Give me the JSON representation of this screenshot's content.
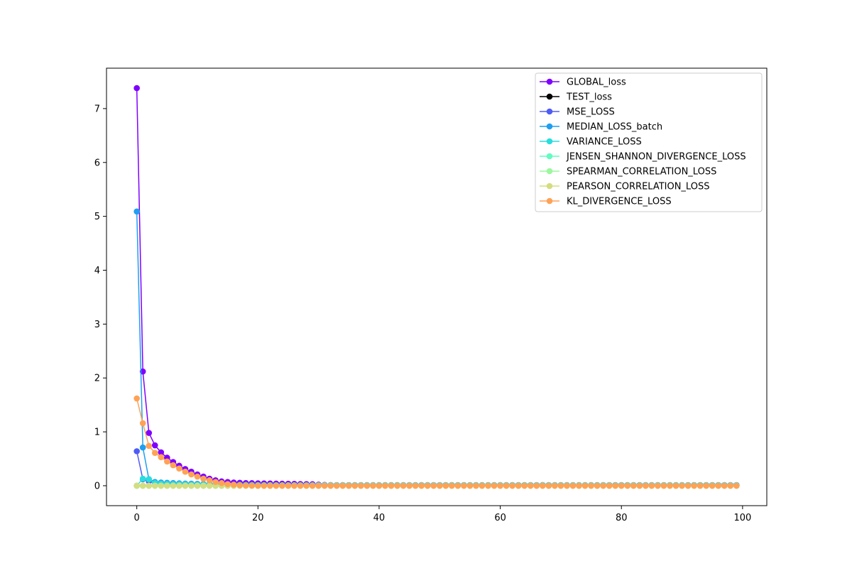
{
  "chart_data": {
    "type": "line",
    "title": "",
    "xlabel": "",
    "ylabel": "",
    "x": {
      "start": 0,
      "end": 99,
      "step": 1
    },
    "xlim": [
      -5,
      104
    ],
    "ylim": [
      -0.37,
      7.75
    ],
    "xticks": [
      0,
      20,
      40,
      60,
      80,
      100
    ],
    "yticks": [
      0,
      1,
      2,
      3,
      4,
      5,
      6,
      7
    ],
    "grid": false,
    "legend_position": "top-right",
    "markers": "circle",
    "series": [
      {
        "name": "GLOBAL_loss",
        "color": "#7f00ff",
        "values": [
          7.38,
          2.12,
          0.98,
          0.75,
          0.62,
          0.52,
          0.44,
          0.37,
          0.31,
          0.26,
          0.21,
          0.17,
          0.13,
          0.1,
          0.08,
          0.07,
          0.06,
          0.055,
          0.05,
          0.048,
          0.045,
          0.043,
          0.041,
          0.04,
          0.038,
          0.036,
          0.034,
          0.032,
          0.03,
          0.028,
          0.02,
          0.015,
          0.012,
          0.01,
          0.01,
          0.01,
          0.01,
          0.01,
          0.01,
          0.01,
          0.01,
          0.01,
          0.01,
          0.01,
          0.01,
          0.01,
          0.01,
          0.01,
          0.01,
          0.01,
          0.01,
          0.01,
          0.01,
          0.01,
          0.01,
          0.01,
          0.01,
          0.01,
          0.01,
          0.01,
          0.01,
          0.01,
          0.01,
          0.01,
          0.01,
          0.01,
          0.01,
          0.01,
          0.01,
          0.01,
          0.01,
          0.01,
          0.01,
          0.01,
          0.01,
          0.01,
          0.01,
          0.01,
          0.01,
          0.01,
          0.01,
          0.01,
          0.01,
          0.01,
          0.01,
          0.01,
          0.01,
          0.01,
          0.01,
          0.01,
          0.01,
          0.01,
          0.01,
          0.01,
          0.01,
          0.01,
          0.01,
          0.01,
          0.01,
          0.01
        ]
      },
      {
        "name": "TEST_loss",
        "color": "#000000",
        "values": []
      },
      {
        "name": "MSE_LOSS",
        "color": "#4f5bf5",
        "values": [
          0.64,
          0.12,
          0.08,
          0.06,
          0.05,
          0.045,
          0.04,
          0.035,
          0.03,
          0.028,
          0.026,
          0.024,
          0.022,
          0.02,
          0.019,
          0.018,
          0.017,
          0.016,
          0.015,
          0.014,
          0.013,
          0.012,
          0.011,
          0.01,
          0.01,
          0.01,
          0.01,
          0.01,
          0.01,
          0.01,
          0.01,
          0.01,
          0.01,
          0.01,
          0.01,
          0.01,
          0.01,
          0.01,
          0.01,
          0.01,
          0.01,
          0.01,
          0.01,
          0.01,
          0.01,
          0.01,
          0.01,
          0.01,
          0.01,
          0.01,
          0.01,
          0.01,
          0.01,
          0.01,
          0.01,
          0.01,
          0.01,
          0.01,
          0.01,
          0.01,
          0.01,
          0.01,
          0.01,
          0.01,
          0.01,
          0.01,
          0.01,
          0.01,
          0.01,
          0.01,
          0.01,
          0.01,
          0.01,
          0.01,
          0.01,
          0.01,
          0.01,
          0.01,
          0.01,
          0.01,
          0.01,
          0.01,
          0.01,
          0.01,
          0.01,
          0.01,
          0.01,
          0.01,
          0.01,
          0.01,
          0.01,
          0.01,
          0.01,
          0.01,
          0.01,
          0.01,
          0.01,
          0.01,
          0.01,
          0.01
        ]
      },
      {
        "name": "MEDIAN_LOSS_batch",
        "color": "#1e9ff0",
        "values": [
          5.09,
          0.71,
          0.12,
          0.07,
          0.06,
          0.055,
          0.05,
          0.045,
          0.04,
          0.038,
          0.035,
          0.032,
          0.03,
          0.028,
          0.026,
          0.024,
          0.022,
          0.02,
          0.018,
          0.016,
          0.014,
          0.012,
          0.01,
          0.01,
          0.01,
          0.01,
          0.01,
          0.01,
          0.01,
          0.01,
          0.01,
          0.01,
          0.01,
          0.01,
          0.01,
          0.01,
          0.01,
          0.01,
          0.01,
          0.01,
          0.01,
          0.01,
          0.01,
          0.01,
          0.01,
          0.01,
          0.01,
          0.01,
          0.01,
          0.01,
          0.01,
          0.01,
          0.01,
          0.01,
          0.01,
          0.01,
          0.01,
          0.01,
          0.01,
          0.01,
          0.01,
          0.01,
          0.01,
          0.01,
          0.01,
          0.01,
          0.01,
          0.01,
          0.01,
          0.01,
          0.01,
          0.01,
          0.01,
          0.01,
          0.01,
          0.01,
          0.01,
          0.01,
          0.01,
          0.01,
          0.01,
          0.01,
          0.01,
          0.01,
          0.01,
          0.01,
          0.01,
          0.01,
          0.01,
          0.01,
          0.01,
          0.01,
          0.01,
          0.01,
          0.01,
          0.01,
          0.01,
          0.01,
          0.01,
          0.01
        ]
      },
      {
        "name": "VARIANCE_LOSS",
        "color": "#2adddd",
        "values": [
          0.0,
          0.13,
          0.12,
          0.05,
          0.04,
          0.035,
          0.03,
          0.028,
          0.025,
          0.022,
          0.02,
          0.018,
          0.016,
          0.014,
          0.012,
          0.01,
          0.01,
          0.01,
          0.01,
          0.01,
          0.01,
          0.01,
          0.01,
          0.01,
          0.01,
          0.01,
          0.01,
          0.01,
          0.01,
          0.01,
          0.01,
          0.01,
          0.01,
          0.01,
          0.01,
          0.01,
          0.01,
          0.01,
          0.01,
          0.01,
          0.01,
          0.01,
          0.01,
          0.01,
          0.01,
          0.01,
          0.01,
          0.01,
          0.01,
          0.01,
          0.01,
          0.01,
          0.01,
          0.01,
          0.01,
          0.01,
          0.01,
          0.01,
          0.01,
          0.01,
          0.01,
          0.01,
          0.01,
          0.01,
          0.01,
          0.01,
          0.01,
          0.01,
          0.01,
          0.01,
          0.01,
          0.01,
          0.01,
          0.01,
          0.01,
          0.01,
          0.01,
          0.01,
          0.01,
          0.01,
          0.01,
          0.01,
          0.01,
          0.01,
          0.01,
          0.01,
          0.01,
          0.01,
          0.01,
          0.01,
          0.01,
          0.01,
          0.01,
          0.01,
          0.01,
          0.01,
          0.01,
          0.01,
          0.01,
          0.01
        ]
      },
      {
        "name": "JENSEN_SHANNON_DIVERGENCE_LOSS",
        "color": "#62fbc2",
        "values": [
          0.0,
          0.0,
          0.0,
          0.0,
          0.0,
          0.0,
          0.0,
          0.0,
          0.0,
          0.0,
          0.0,
          0.0,
          0.0,
          0.0,
          0.0,
          0.0,
          0.0,
          0.0,
          0.0,
          0.0,
          0.0,
          0.0,
          0.0,
          0.0,
          0.0,
          0.0,
          0.0,
          0.0,
          0.0,
          0.0,
          0.0,
          0.0,
          0.0,
          0.0,
          0.0,
          0.0,
          0.0,
          0.0,
          0.0,
          0.0,
          0.0,
          0.0,
          0.0,
          0.0,
          0.0,
          0.0,
          0.0,
          0.0,
          0.0,
          0.0,
          0.0,
          0.0,
          0.0,
          0.0,
          0.0,
          0.0,
          0.0,
          0.0,
          0.0,
          0.0,
          0.0,
          0.0,
          0.0,
          0.0,
          0.0,
          0.0,
          0.0,
          0.0,
          0.0,
          0.0,
          0.0,
          0.0,
          0.0,
          0.0,
          0.0,
          0.0,
          0.0,
          0.0,
          0.0,
          0.0,
          0.0,
          0.0,
          0.0,
          0.0,
          0.0,
          0.0,
          0.0,
          0.0,
          0.0,
          0.0,
          0.0,
          0.0,
          0.0,
          0.0,
          0.0,
          0.0,
          0.0,
          0.0,
          0.0,
          0.0
        ]
      },
      {
        "name": "SPEARMAN_CORRELATION_LOSS",
        "color": "#9cf7a0",
        "values": [
          0.0,
          0.0,
          0.0,
          0.0,
          0.0,
          0.0,
          0.0,
          0.0,
          0.0,
          0.0,
          0.0,
          0.0,
          0.0,
          0.0,
          0.0,
          0.0,
          0.0,
          0.0,
          0.0,
          0.0,
          0.0,
          0.0,
          0.0,
          0.0,
          0.0,
          0.0,
          0.0,
          0.0,
          0.0,
          0.0,
          0.0,
          0.0,
          0.0,
          0.0,
          0.0,
          0.0,
          0.0,
          0.0,
          0.0,
          0.0,
          0.0,
          0.0,
          0.0,
          0.0,
          0.0,
          0.0,
          0.0,
          0.0,
          0.0,
          0.0,
          0.0,
          0.0,
          0.0,
          0.0,
          0.0,
          0.0,
          0.0,
          0.0,
          0.0,
          0.0,
          0.0,
          0.0,
          0.0,
          0.0,
          0.0,
          0.0,
          0.0,
          0.0,
          0.0,
          0.0,
          0.0,
          0.0,
          0.0,
          0.0,
          0.0,
          0.0,
          0.0,
          0.0,
          0.0,
          0.0,
          0.0,
          0.0,
          0.0,
          0.0,
          0.0,
          0.0,
          0.0,
          0.0,
          0.0,
          0.0,
          0.0,
          0.0,
          0.0,
          0.0,
          0.0,
          0.0,
          0.0,
          0.0,
          0.0,
          0.0
        ]
      },
      {
        "name": "PEARSON_CORRELATION_LOSS",
        "color": "#d4dd80",
        "values": [
          0.0,
          0.0,
          0.0,
          0.0,
          0.0,
          0.0,
          0.0,
          0.0,
          0.0,
          0.0,
          0.0,
          0.0,
          0.0,
          0.0,
          0.0,
          0.0,
          0.0,
          0.0,
          0.0,
          0.0,
          0.0,
          0.0,
          0.0,
          0.0,
          0.0,
          0.0,
          0.0,
          0.0,
          0.0,
          0.0,
          0.0,
          0.0,
          0.0,
          0.0,
          0.0,
          0.0,
          0.0,
          0.0,
          0.0,
          0.0,
          0.0,
          0.0,
          0.0,
          0.0,
          0.0,
          0.0,
          0.0,
          0.0,
          0.0,
          0.0,
          0.0,
          0.0,
          0.0,
          0.0,
          0.0,
          0.0,
          0.0,
          0.0,
          0.0,
          0.0,
          0.0,
          0.0,
          0.0,
          0.0,
          0.0,
          0.0,
          0.0,
          0.0,
          0.0,
          0.0,
          0.0,
          0.0,
          0.0,
          0.0,
          0.0,
          0.0,
          0.0,
          0.0,
          0.0,
          0.0,
          0.0,
          0.0,
          0.0,
          0.0,
          0.0,
          0.0,
          0.0,
          0.0,
          0.0,
          0.0,
          0.0,
          0.0,
          0.0,
          0.0,
          0.0,
          0.0,
          0.0,
          0.0,
          0.0,
          0.0
        ]
      },
      {
        "name": "KL_DIVERGENCE_LOSS",
        "color": "#ffa256",
        "values": [
          1.62,
          1.16,
          0.74,
          0.61,
          0.53,
          0.45,
          0.38,
          0.32,
          0.26,
          0.21,
          0.17,
          0.13,
          0.1,
          0.07,
          0.05,
          0.03,
          0.02,
          0.01,
          0.005,
          0.003,
          0.0,
          0.0,
          0.0,
          0.0,
          0.0,
          0.0,
          0.0,
          0.0,
          0.0,
          0.0,
          0.0,
          0.0,
          0.0,
          0.0,
          0.0,
          0.0,
          0.0,
          0.0,
          0.0,
          0.0,
          0.0,
          0.0,
          0.0,
          0.0,
          0.0,
          0.0,
          0.0,
          0.0,
          0.0,
          0.0,
          0.0,
          0.0,
          0.0,
          0.0,
          0.0,
          0.0,
          0.0,
          0.0,
          0.0,
          0.0,
          0.0,
          0.0,
          0.0,
          0.0,
          0.0,
          0.0,
          0.0,
          0.0,
          0.0,
          0.0,
          0.0,
          0.0,
          0.0,
          0.0,
          0.0,
          0.0,
          0.0,
          0.0,
          0.0,
          0.0,
          0.0,
          0.0,
          0.0,
          0.0,
          0.0,
          0.0,
          0.0,
          0.0,
          0.0,
          0.0,
          0.0,
          0.0,
          0.0,
          0.0,
          0.0,
          0.0,
          0.0,
          0.0,
          0.0,
          0.0
        ]
      }
    ]
  }
}
